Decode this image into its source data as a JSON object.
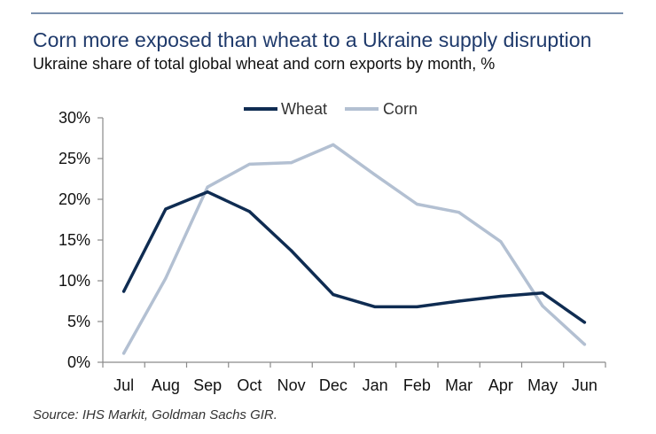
{
  "header": {
    "title": "Corn more exposed than wheat to a Ukraine supply disruption",
    "subtitle": "Ukraine share of total global wheat and corn exports by month, %"
  },
  "footer": {
    "source": "Source: IHS Markit, Goldman Sachs GIR."
  },
  "chart_data": {
    "type": "line",
    "title": "Corn more exposed than wheat to a Ukraine supply disruption",
    "subtitle": "Ukraine share of total global wheat and corn exports by month, %",
    "xlabel": "",
    "ylabel": "",
    "categories": [
      "Jul",
      "Aug",
      "Sep",
      "Oct",
      "Nov",
      "Dec",
      "Jan",
      "Feb",
      "Mar",
      "Apr",
      "May",
      "Jun"
    ],
    "ylim": [
      0,
      30
    ],
    "yticks": [
      0,
      5,
      10,
      15,
      20,
      25,
      30
    ],
    "ytick_labels": [
      "0%",
      "5%",
      "10%",
      "15%",
      "20%",
      "25%",
      "30%"
    ],
    "grid": false,
    "legend_position": "top-center",
    "series": [
      {
        "name": "Wheat",
        "color": "#0f2c52",
        "values": [
          8.7,
          18.8,
          20.9,
          18.5,
          13.7,
          8.3,
          6.8,
          6.8,
          7.5,
          8.1,
          8.5,
          4.9
        ]
      },
      {
        "name": "Corn",
        "color": "#b3c0d2",
        "values": [
          1.1,
          10.3,
          21.5,
          24.3,
          24.5,
          26.7,
          23.0,
          19.4,
          18.4,
          14.8,
          6.9,
          2.2
        ]
      }
    ],
    "source": "Source: IHS Markit, Goldman Sachs GIR."
  }
}
